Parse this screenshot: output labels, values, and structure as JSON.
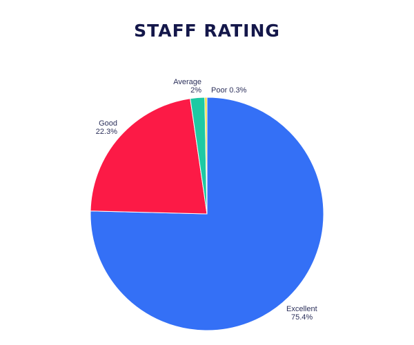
{
  "chart_data": {
    "type": "pie",
    "title": "STAFF RATING",
    "slices": [
      {
        "label": "Excellent",
        "value": 75.4,
        "display": "75.4%",
        "color": "#3470f6"
      },
      {
        "label": "Good",
        "value": 22.3,
        "display": "22.3%",
        "color": "#fc1a46"
      },
      {
        "label": "Average",
        "value": 2,
        "display": "2%",
        "color": "#1ec9a3"
      },
      {
        "label": "Poor",
        "value": 0.3,
        "display": "0.3%",
        "color": "#f6d72a"
      }
    ],
    "legend": false
  }
}
